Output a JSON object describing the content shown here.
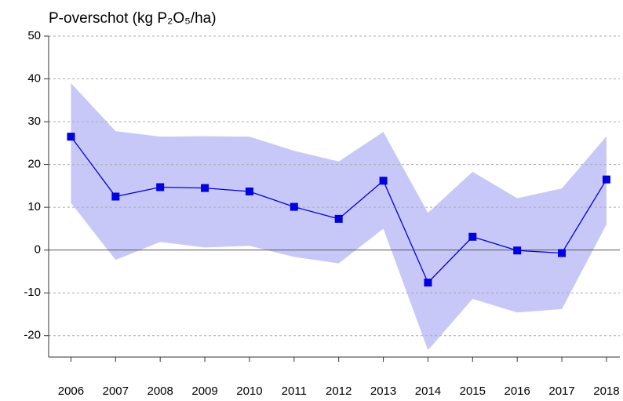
{
  "chart_data": {
    "type": "line",
    "title": "P-overschot (kg P₂O₅/ha)",
    "x": [
      2006,
      2007,
      2008,
      2009,
      2010,
      2011,
      2012,
      2013,
      2014,
      2015,
      2016,
      2017,
      2018
    ],
    "xlim": [
      2005.5,
      2018.3
    ],
    "xticks": [
      2006,
      2007,
      2008,
      2009,
      2010,
      2011,
      2012,
      2013,
      2014,
      2015,
      2016,
      2017,
      2018
    ],
    "ylim": [
      -25,
      50
    ],
    "yticks": [
      -20,
      -10,
      0,
      10,
      20,
      30,
      40,
      50
    ],
    "grid": true,
    "series": [
      {
        "color": "#0000e0",
        "values": [
          26.5,
          12.5,
          14.7,
          14.5,
          13.7,
          10.1,
          7.3,
          16.2,
          -7.6,
          3.1,
          -0.1,
          -0.7,
          16.5
        ]
      }
    ],
    "band": {
      "color": "#c8c8f8",
      "upper": [
        39,
        27.8,
        26.5,
        26.6,
        26.5,
        23.2,
        20.7,
        27.6,
        8.7,
        18.3,
        12.1,
        14.4,
        26.6
      ],
      "lower": [
        11,
        -2.3,
        1.9,
        0.6,
        1.0,
        -1.6,
        -3.1,
        5.0,
        -23.4,
        -11.4,
        -14.6,
        -13.8,
        6.0
      ]
    }
  }
}
